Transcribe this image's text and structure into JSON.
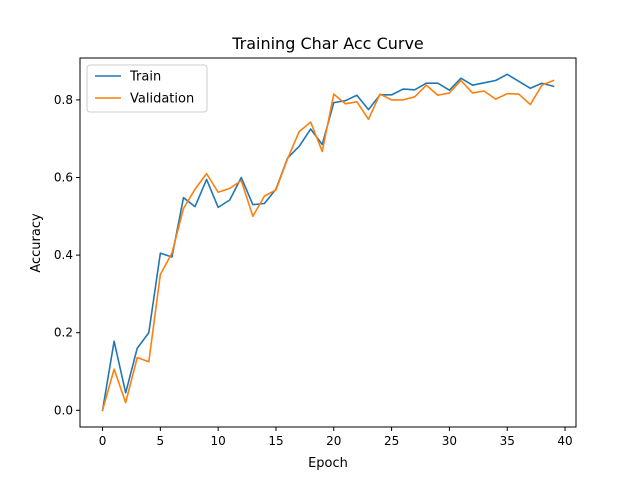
{
  "chart_data": {
    "type": "line",
    "title": "Training Char Acc Curve",
    "xlabel": "Epoch",
    "ylabel": "Accuracy",
    "xlim": [
      -1.95,
      40.95
    ],
    "ylim": [
      -0.043,
      0.908
    ],
    "xticks": [
      0,
      5,
      10,
      15,
      20,
      25,
      30,
      35,
      40
    ],
    "yticks": [
      0.0,
      0.2,
      0.4,
      0.6,
      0.8
    ],
    "grid": false,
    "legend_position": "top-left",
    "x": [
      0,
      1,
      2,
      3,
      4,
      5,
      6,
      7,
      8,
      9,
      10,
      11,
      12,
      13,
      14,
      15,
      16,
      17,
      18,
      19,
      20,
      21,
      22,
      23,
      24,
      25,
      26,
      27,
      28,
      29,
      30,
      31,
      32,
      33,
      34,
      35,
      36,
      37,
      38,
      39
    ],
    "series": [
      {
        "name": "Train",
        "color": "#1f77b4",
        "values": [
          0.0,
          0.178,
          0.045,
          0.16,
          0.2,
          0.405,
          0.395,
          0.548,
          0.525,
          0.595,
          0.523,
          0.542,
          0.6,
          0.53,
          0.533,
          0.57,
          0.65,
          0.68,
          0.725,
          0.685,
          0.793,
          0.798,
          0.812,
          0.775,
          0.813,
          0.813,
          0.828,
          0.826,
          0.843,
          0.843,
          0.825,
          0.856,
          0.838,
          0.844,
          0.85,
          0.866,
          0.848,
          0.83,
          0.843,
          0.835
        ]
      },
      {
        "name": "Validation",
        "color": "#ff7f0e",
        "values": [
          0.0,
          0.106,
          0.02,
          0.136,
          0.125,
          0.35,
          0.405,
          0.52,
          0.57,
          0.61,
          0.562,
          0.572,
          0.592,
          0.5,
          0.552,
          0.568,
          0.648,
          0.718,
          0.743,
          0.667,
          0.815,
          0.79,
          0.795,
          0.75,
          0.815,
          0.8,
          0.8,
          0.808,
          0.838,
          0.812,
          0.818,
          0.85,
          0.818,
          0.823,
          0.802,
          0.816,
          0.815,
          0.788,
          0.838,
          0.85
        ]
      }
    ]
  }
}
